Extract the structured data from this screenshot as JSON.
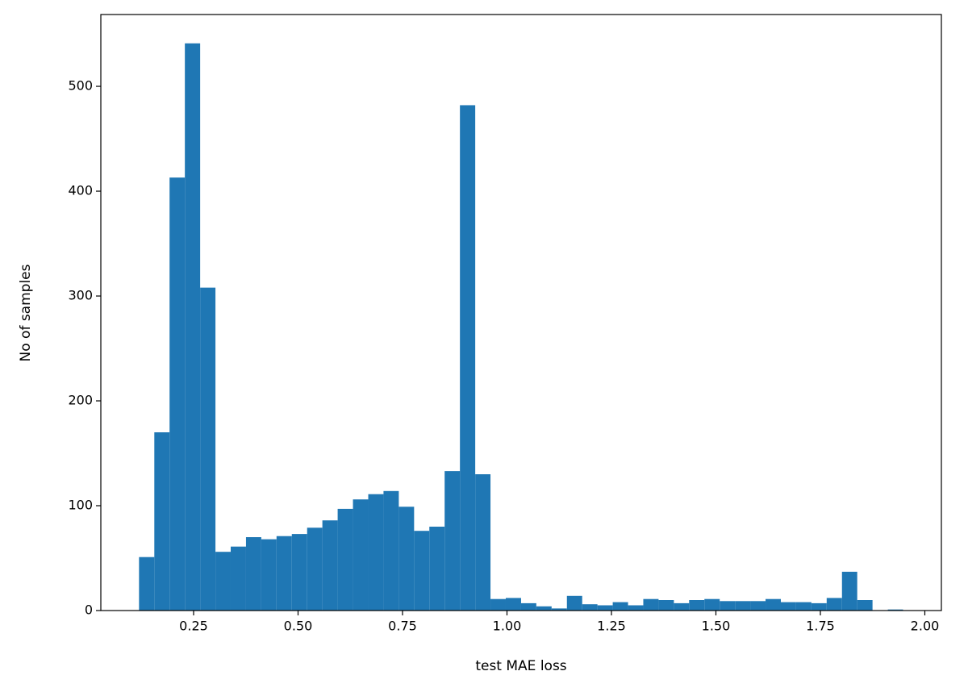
{
  "chart_data": {
    "type": "histogram",
    "xlabel": "test MAE loss",
    "ylabel": "No of samples",
    "color": "#1f77b4",
    "bins": [
      0.1194,
      0.156,
      0.1925,
      0.2291,
      0.2657,
      0.3023,
      0.3388,
      0.3754,
      0.412,
      0.4485,
      0.4851,
      0.5217,
      0.5582,
      0.5948,
      0.6314,
      0.668,
      0.7045,
      0.7411,
      0.7777,
      0.8142,
      0.8508,
      0.8874,
      0.924,
      0.9605,
      0.9971,
      1.0337,
      1.0702,
      1.1068,
      1.1434,
      1.18,
      1.2165,
      1.2531,
      1.2897,
      1.3262,
      1.3628,
      1.3994,
      1.4359,
      1.4725,
      1.5091,
      1.5457,
      1.5822,
      1.6188,
      1.6554,
      1.6919,
      1.7285,
      1.7651,
      1.8017,
      1.8382,
      1.8748,
      1.9114,
      1.9479
    ],
    "values": [
      51,
      170,
      413,
      541,
      308,
      56,
      61,
      70,
      68,
      71,
      73,
      79,
      86,
      97,
      106,
      111,
      114,
      99,
      76,
      80,
      133,
      482,
      130,
      11,
      12,
      7,
      4,
      2,
      14,
      6,
      5,
      8,
      5,
      11,
      10,
      7,
      10,
      11,
      9,
      9,
      9,
      11,
      8,
      8,
      7,
      12,
      37,
      10,
      0,
      1
    ],
    "xlim": [
      0.028,
      2.0396
    ],
    "ylim": [
      0,
      568.5
    ],
    "xticks": [
      {
        "value": 0.25,
        "label": "0.25"
      },
      {
        "value": 0.5,
        "label": "0.50"
      },
      {
        "value": 0.75,
        "label": "0.75"
      },
      {
        "value": 1,
        "label": "1.00"
      },
      {
        "value": 1.25,
        "label": "1.25"
      },
      {
        "value": 1.5,
        "label": "1.50"
      },
      {
        "value": 1.75,
        "label": "1.75"
      },
      {
        "value": 2,
        "label": "2.00"
      }
    ],
    "yticks": [
      0,
      100,
      200,
      300,
      400,
      500
    ]
  }
}
